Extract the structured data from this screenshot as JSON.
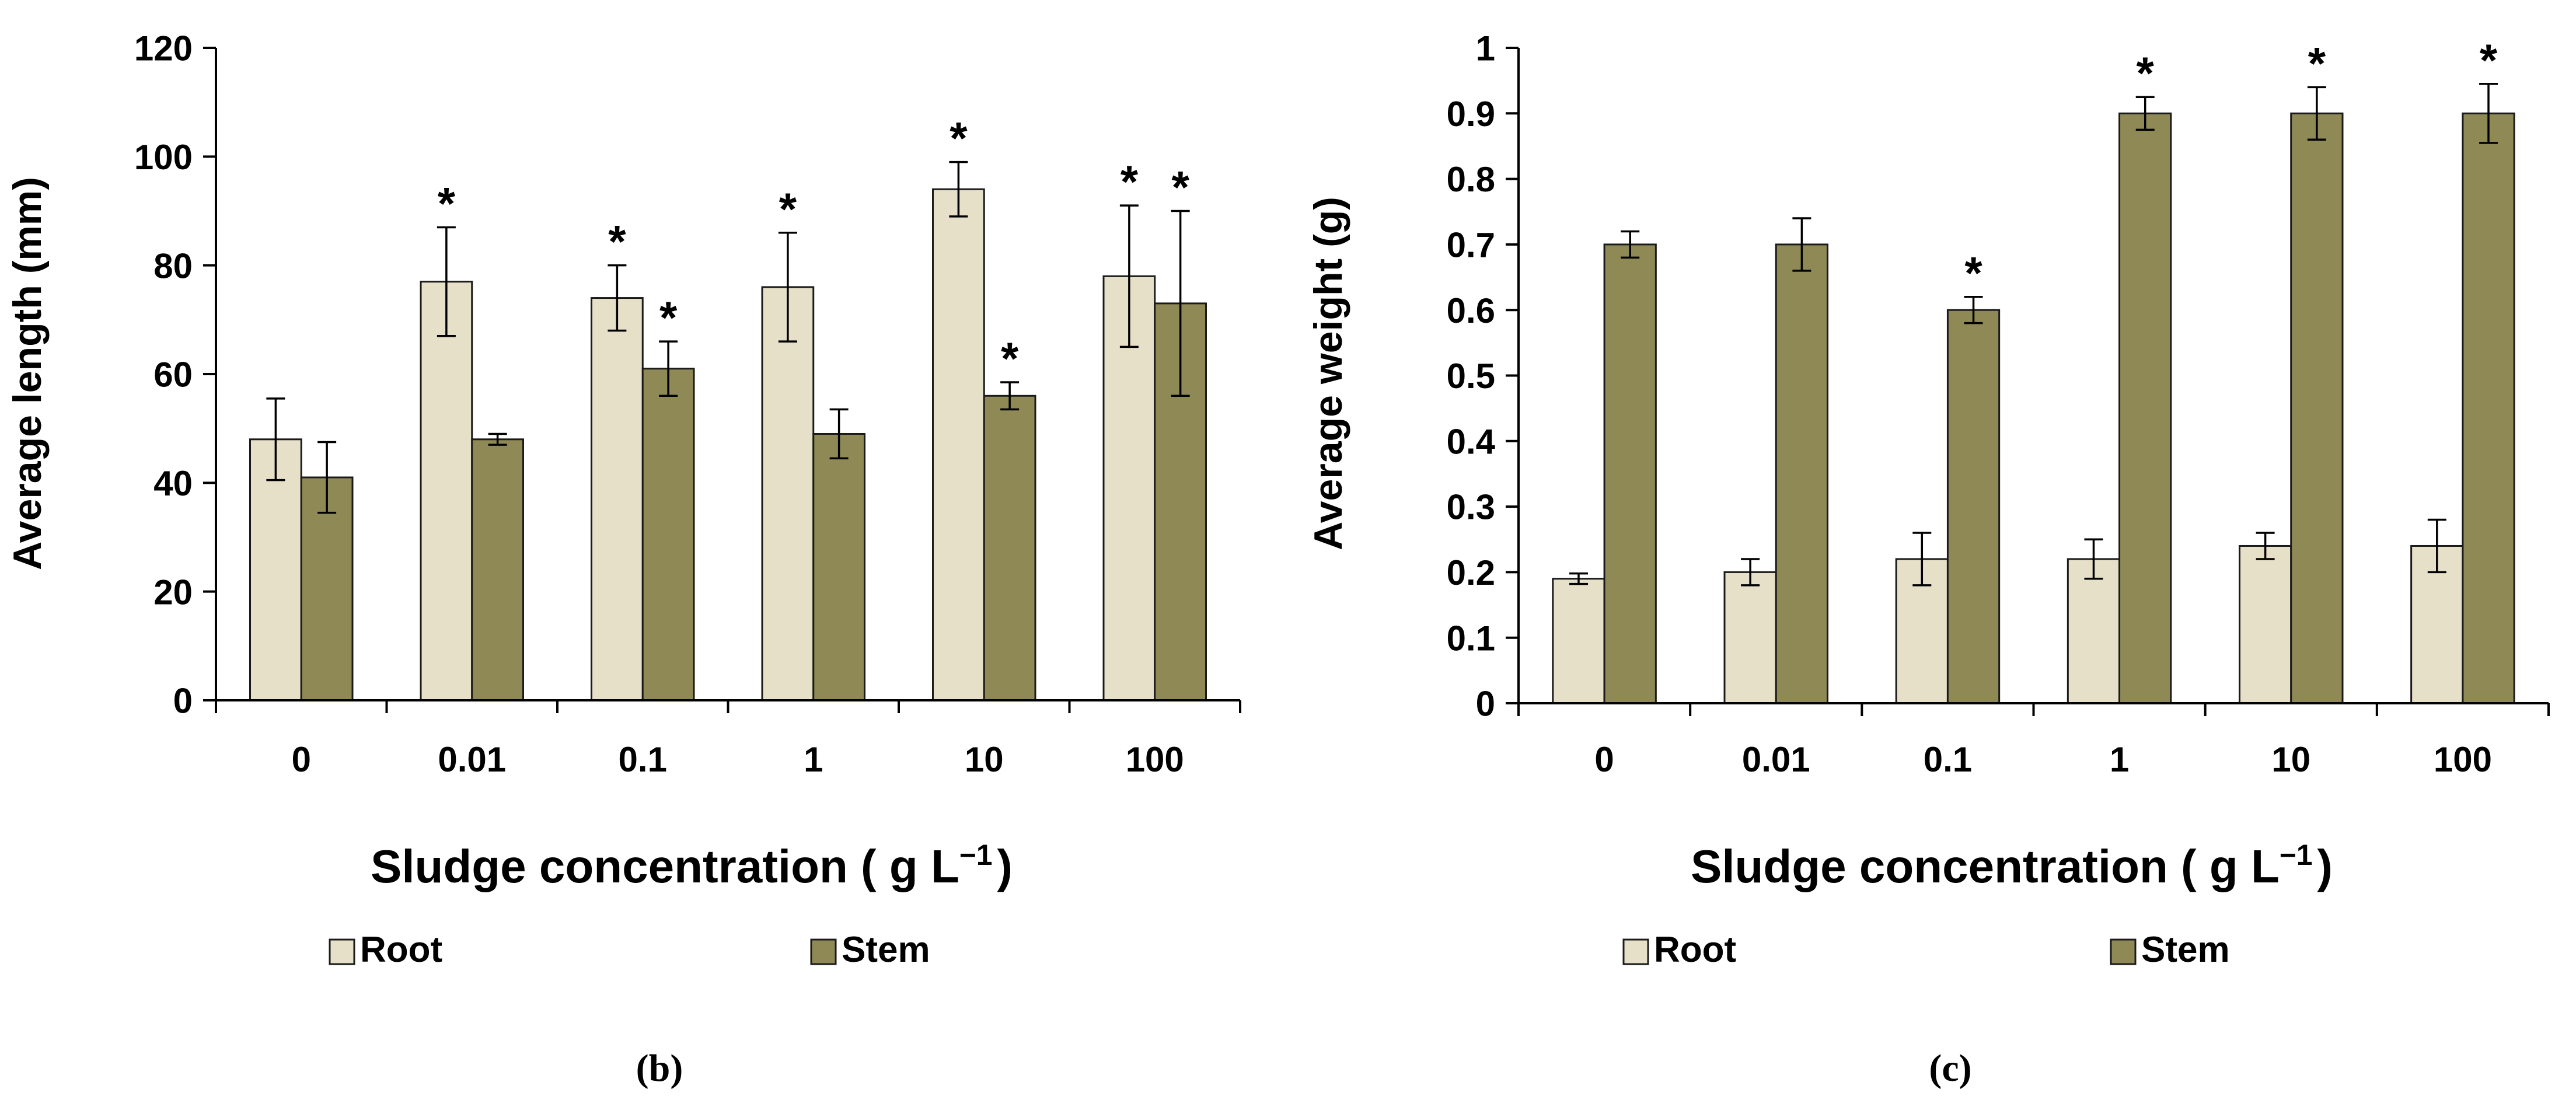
{
  "colors": {
    "root": "#e6e0c9",
    "stem": "#8f8a55",
    "edge": "#1a1a1a",
    "axis": "#000000"
  },
  "chart_data": [
    {
      "type": "bar",
      "panel_label": "b",
      "ylabel": "Average length (mm)",
      "xlabel": "Sludge concentration ( g L",
      "xlabel_sup": "−1",
      "xlabel_close": ")",
      "categories": [
        "0",
        "0.01",
        "0.1",
        "1",
        "10",
        "100"
      ],
      "ylim": [
        0,
        120
      ],
      "yticks": [
        0,
        20,
        40,
        60,
        80,
        100,
        120
      ],
      "ytick_labels": [
        "0",
        "20",
        "40",
        "60",
        "80",
        "100",
        "120"
      ],
      "grid": false,
      "legend": "bottom",
      "significance_marker": "*",
      "series": [
        {
          "name": "Root",
          "color_key": "root",
          "values": [
            48,
            77,
            74,
            76,
            94,
            78
          ],
          "errors": [
            7.5,
            10,
            6,
            10,
            5,
            13
          ],
          "significant": [
            false,
            true,
            true,
            true,
            true,
            true
          ]
        },
        {
          "name": "Stem",
          "color_key": "stem",
          "values": [
            41,
            48,
            61,
            49,
            56,
            73
          ],
          "errors": [
            6.5,
            1,
            5,
            4.5,
            2.5,
            17
          ],
          "significant": [
            false,
            false,
            true,
            false,
            true,
            true
          ]
        }
      ]
    },
    {
      "type": "bar",
      "panel_label": "c",
      "ylabel": "Average weight (g)",
      "xlabel": "Sludge concentration ( g L",
      "xlabel_sup": "−1",
      "xlabel_close": ")",
      "categories": [
        "0",
        "0.01",
        "0.1",
        "1",
        "10",
        "100"
      ],
      "ylim": [
        0,
        1
      ],
      "yticks": [
        0,
        0.1,
        0.2,
        0.3,
        0.4,
        0.5,
        0.6,
        0.7,
        0.8,
        0.9,
        1
      ],
      "ytick_labels": [
        "0",
        "0.1",
        "0.2",
        "0.3",
        "0.4",
        "0.5",
        "0.6",
        "0.7",
        "0.8",
        "0.9",
        "1"
      ],
      "grid": false,
      "legend": "bottom",
      "significance_marker": "*",
      "series": [
        {
          "name": "Root",
          "color_key": "root",
          "values": [
            0.19,
            0.2,
            0.22,
            0.22,
            0.24,
            0.24
          ],
          "errors": [
            0.008,
            0.02,
            0.04,
            0.03,
            0.02,
            0.04
          ],
          "significant": [
            false,
            false,
            false,
            false,
            false,
            false
          ]
        },
        {
          "name": "Stem",
          "color_key": "stem",
          "values": [
            0.7,
            0.7,
            0.6,
            0.9,
            0.9,
            0.9
          ],
          "errors": [
            0.02,
            0.04,
            0.02,
            0.025,
            0.04,
            0.045
          ],
          "significant": [
            false,
            false,
            true,
            true,
            true,
            true
          ]
        }
      ]
    }
  ]
}
